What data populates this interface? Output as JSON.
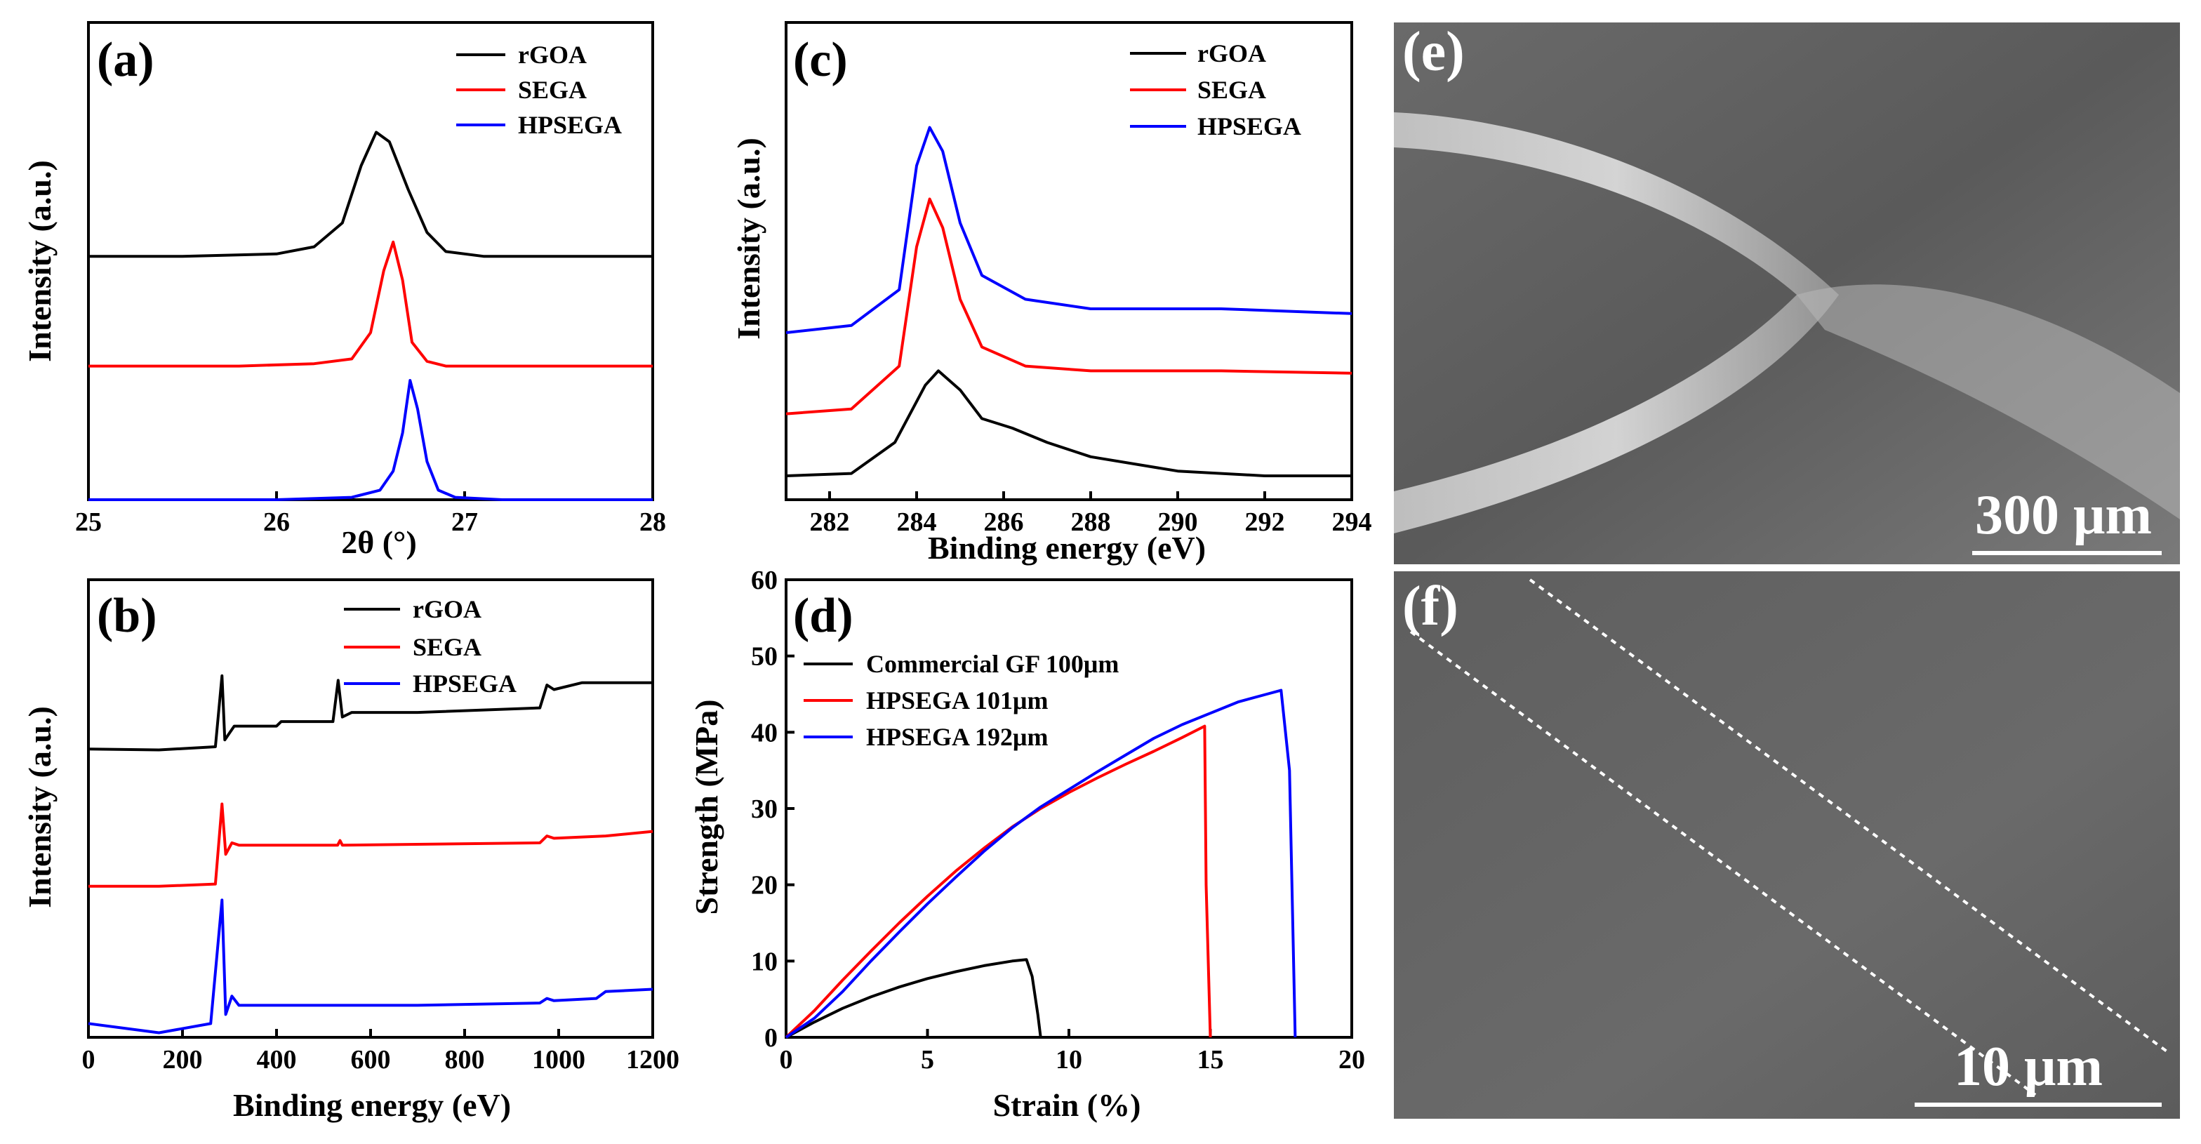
{
  "colors": {
    "rGOA": "#000000",
    "SEGA": "#ff0000",
    "HPSEGA": "#0000ff"
  },
  "panels": {
    "a": {
      "label": "(a)",
      "xlabel": "2θ (°)",
      "ylabel": "Intensity (a.u.)",
      "legend": [
        "rGOA",
        "SEGA",
        "HPSEGA"
      ]
    },
    "b": {
      "label": "(b)",
      "xlabel": "Binding energy (eV)",
      "ylabel": "Intensity (a.u.)",
      "legend": [
        "rGOA",
        "SEGA",
        "HPSEGA"
      ]
    },
    "c": {
      "label": "(c)",
      "xlabel": "Binding energy (eV)",
      "ylabel": "Intensity (a.u.)",
      "legend": [
        "rGOA",
        "SEGA",
        "HPSEGA"
      ]
    },
    "d": {
      "label": "(d)",
      "xlabel": "Strain (%)",
      "ylabel": "Strength (MPa)",
      "legend": [
        "Commercial GF 100μm",
        "HPSEGA 101μm",
        "HPSEGA 192μm"
      ]
    },
    "e": {
      "label": "(e)",
      "scale": "300 μm"
    },
    "f": {
      "label": "(f)",
      "scale": "10 μm"
    }
  },
  "chart_data": [
    {
      "id": "a",
      "type": "line",
      "xlim": [
        25,
        28
      ],
      "xticks": [
        "25",
        "26",
        "27",
        "28"
      ],
      "ylim": [
        0,
        100
      ],
      "y_ticks_labeled": false,
      "series": [
        {
          "name": "rGOA",
          "x": [
            25,
            25.5,
            26,
            26.2,
            26.35,
            26.45,
            26.53,
            26.6,
            26.7,
            26.8,
            26.9,
            27.1,
            27.5,
            28
          ],
          "y": [
            51,
            51,
            51.5,
            53,
            58,
            70,
            77,
            75,
            65,
            56,
            52,
            51,
            51,
            51
          ]
        },
        {
          "name": "SEGA",
          "x": [
            25,
            25.8,
            26.2,
            26.4,
            26.5,
            26.57,
            26.62,
            26.67,
            26.72,
            26.8,
            26.9,
            27.2,
            28
          ],
          "y": [
            28,
            28,
            28.5,
            29.5,
            35,
            48,
            54,
            46,
            33,
            29,
            28,
            28,
            28
          ]
        },
        {
          "name": "HPSEGA",
          "x": [
            25,
            26,
            26.4,
            26.55,
            26.62,
            26.67,
            26.71,
            26.75,
            26.8,
            26.86,
            26.95,
            27.2,
            28
          ],
          "y": [
            0,
            0,
            0.5,
            2,
            6,
            14,
            25,
            19,
            8,
            2,
            0.5,
            0,
            0
          ]
        }
      ]
    },
    {
      "id": "b",
      "type": "line",
      "xlim": [
        0,
        1200
      ],
      "xticks": [
        "0",
        "200",
        "400",
        "600",
        "800",
        "1000",
        "1200"
      ],
      "ylim": [
        0,
        100
      ],
      "y_ticks_labeled": false,
      "series": [
        {
          "name": "rGOA",
          "x": [
            0,
            150,
            270,
            284,
            290,
            300,
            310,
            400,
            410,
            520,
            531,
            540,
            560,
            700,
            960,
            975,
            990,
            1050,
            1200
          ],
          "y": [
            63,
            62.8,
            63.5,
            79,
            65,
            66.5,
            68,
            68,
            69,
            69,
            78,
            70,
            71,
            71,
            72,
            77,
            76,
            77.5,
            77.5
          ]
        },
        {
          "name": "SEGA",
          "x": [
            0,
            150,
            270,
            284,
            292,
            305,
            320,
            530,
            535,
            540,
            960,
            975,
            990,
            1100,
            1200
          ],
          "y": [
            33,
            33,
            33.5,
            51,
            40,
            42.5,
            42,
            42,
            43,
            42,
            42.5,
            44,
            43.5,
            44,
            45
          ]
        },
        {
          "name": "HPSEGA",
          "x": [
            0,
            150,
            260,
            284,
            292,
            305,
            320,
            700,
            960,
            975,
            990,
            1080,
            1100,
            1200
          ],
          "y": [
            3,
            1,
            3,
            30,
            5,
            9,
            7,
            7,
            7.5,
            8.5,
            8,
            8.5,
            10,
            10.5
          ]
        }
      ]
    },
    {
      "id": "c",
      "type": "line",
      "xlim": [
        281,
        294
      ],
      "xticks": [
        "282",
        "284",
        "286",
        "288",
        "290",
        "292",
        "294"
      ],
      "ylim": [
        0,
        100
      ],
      "y_ticks_labeled": false,
      "series": [
        {
          "name": "rGOA",
          "x": [
            281,
            282.5,
            283.5,
            284.2,
            284.5,
            285,
            285.5,
            286.2,
            287,
            288,
            290,
            292,
            294
          ],
          "y": [
            5,
            5.5,
            12,
            24,
            27,
            23,
            17,
            15,
            12,
            9,
            6,
            5,
            5
          ]
        },
        {
          "name": "SEGA",
          "x": [
            281,
            282.5,
            283.6,
            284,
            284.3,
            284.6,
            285,
            285.5,
            286.5,
            288,
            291,
            294
          ],
          "y": [
            18,
            19,
            28,
            53,
            63,
            57,
            42,
            32,
            28,
            27,
            27,
            26.5
          ]
        },
        {
          "name": "HPSEGA",
          "x": [
            281,
            282.5,
            283.6,
            284,
            284.3,
            284.6,
            285,
            285.5,
            286.5,
            288,
            291,
            294
          ],
          "y": [
            35,
            36.5,
            44,
            70,
            78,
            73,
            58,
            47,
            42,
            40,
            40,
            39
          ]
        }
      ]
    },
    {
      "id": "d",
      "type": "line",
      "xlim": [
        0,
        20
      ],
      "xticks": [
        "0",
        "5",
        "10",
        "15",
        "20"
      ],
      "ylim": [
        0,
        60
      ],
      "yticks": [
        "0",
        "10",
        "20",
        "30",
        "40",
        "50",
        "60"
      ],
      "series": [
        {
          "name": "Commercial GF 100μm",
          "x": [
            0,
            1,
            2,
            3,
            4,
            5,
            6,
            7,
            8,
            8.5,
            8.7,
            8.9,
            9
          ],
          "y": [
            0,
            2,
            3.8,
            5.3,
            6.6,
            7.7,
            8.6,
            9.4,
            10,
            10.2,
            8,
            3,
            0
          ]
        },
        {
          "name": "HPSEGA 101μm",
          "x": [
            0,
            1,
            2,
            3,
            4,
            5,
            6,
            7,
            8,
            9,
            10,
            11,
            12,
            13,
            14,
            14.8,
            14.85,
            15
          ],
          "y": [
            0,
            3.5,
            7.5,
            11.3,
            15,
            18.5,
            21.8,
            24.8,
            27.6,
            30,
            32.1,
            34,
            35.8,
            37.5,
            39.3,
            40.8,
            20,
            0
          ]
        },
        {
          "name": "HPSEGA 192μm",
          "x": [
            0,
            1,
            2,
            3,
            4,
            5,
            6,
            7,
            8,
            9,
            10,
            11,
            12,
            13,
            14,
            15,
            16,
            17,
            17.5,
            17.8,
            18
          ],
          "y": [
            0,
            2.5,
            6,
            10,
            13.8,
            17.5,
            21,
            24.4,
            27.5,
            30.2,
            32.5,
            34.8,
            37,
            39.2,
            41,
            42.5,
            44,
            45,
            45.5,
            35,
            0
          ]
        }
      ]
    }
  ]
}
